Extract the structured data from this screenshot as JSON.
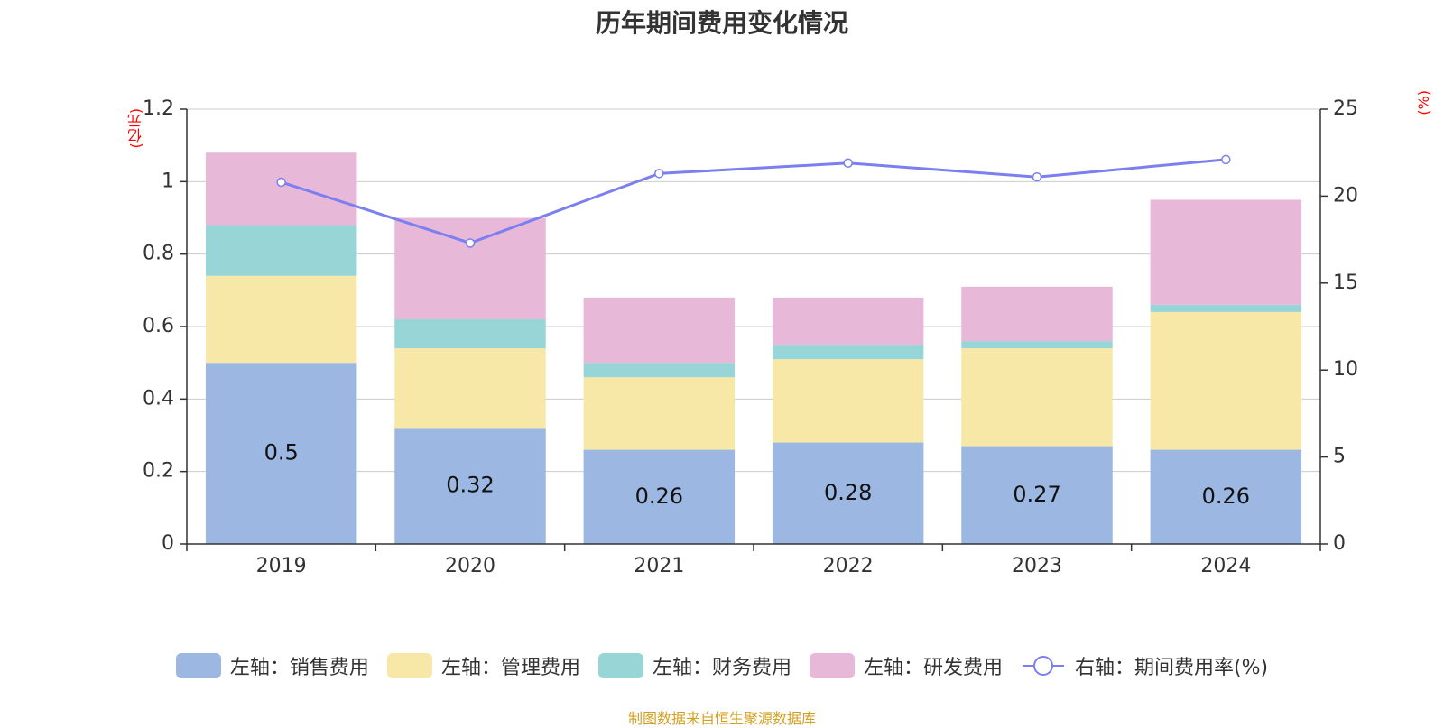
{
  "chart_data": {
    "type": "bar",
    "title": "历年期间费用变化情况",
    "categories": [
      "2019",
      "2020",
      "2021",
      "2022",
      "2023",
      "2024"
    ],
    "stacked": true,
    "series": [
      {
        "name": "左轴：销售费用",
        "axis": "left",
        "color": "#9cb8e2",
        "values": [
          0.5,
          0.32,
          0.26,
          0.28,
          0.27,
          0.26
        ],
        "labels": [
          "0.5",
          "0.32",
          "0.26",
          "0.28",
          "0.27",
          "0.26"
        ]
      },
      {
        "name": "左轴：管理费用",
        "axis": "left",
        "color": "#f8e8a8",
        "values": [
          0.24,
          0.22,
          0.2,
          0.23,
          0.27,
          0.38
        ]
      },
      {
        "name": "左轴：财务费用",
        "axis": "left",
        "color": "#98d5d6",
        "values": [
          0.14,
          0.08,
          0.04,
          0.04,
          0.02,
          0.02
        ]
      },
      {
        "name": "左轴：研发费用",
        "axis": "left",
        "color": "#e8b8d8",
        "values": [
          0.2,
          0.28,
          0.18,
          0.13,
          0.15,
          0.29
        ]
      },
      {
        "name": "右轴：期间费用率(%)",
        "axis": "right",
        "type": "line",
        "color": "#7b7ff0",
        "values": [
          20.8,
          17.3,
          21.3,
          21.9,
          21.1,
          22.1
        ]
      }
    ],
    "left_axis": {
      "unit": "(亿元)",
      "ylim": [
        0,
        1.2
      ],
      "ticks": [
        0,
        0.2,
        0.4,
        0.6,
        0.8,
        1,
        1.2
      ],
      "tick_labels": [
        "0",
        "0.2",
        "0.4",
        "0.6",
        "0.8",
        "1",
        "1.2"
      ]
    },
    "right_axis": {
      "unit": "(%)",
      "ylim": [
        0,
        25
      ],
      "ticks": [
        0,
        5,
        10,
        15,
        20,
        25
      ],
      "tick_labels": [
        "0",
        "5",
        "10",
        "15",
        "20",
        "25"
      ]
    },
    "legend_position": "bottom",
    "grid": true
  },
  "source": "制图数据来自恒生聚源数据库"
}
